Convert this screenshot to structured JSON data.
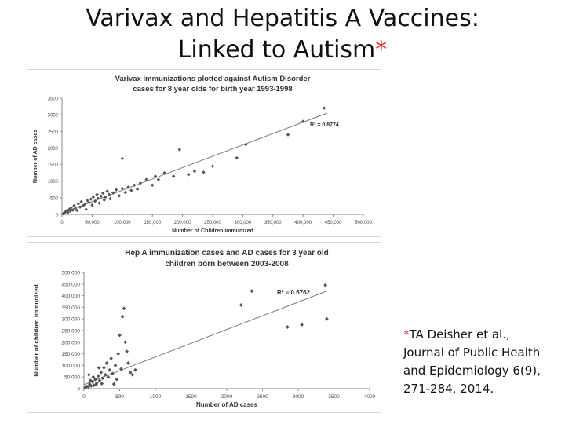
{
  "slide": {
    "title_line1": "Varivax and Hepatitis A Vaccines:",
    "title_line2": "Linked to Autism",
    "title_star": "*",
    "citation_star": "*",
    "citation_lines": [
      "TA Deisher et al.,",
      "Journal of Public Health",
      "and Epidemiology  6(9),",
      "271-284, 2014."
    ],
    "colors": {
      "accent": "#e0302a",
      "marker": "#555555",
      "trendline": "#777777",
      "text": "#111111"
    }
  },
  "chart_data": [
    {
      "type": "scatter",
      "title_lines": [
        "Varivax immunizations plotted against Autism Disorder",
        "cases for 8 year olds for birth year 1993-1998"
      ],
      "xlabel": "Number of Children immunized",
      "ylabel": "Number of AD cases",
      "xlim": [
        0,
        500000
      ],
      "ylim": [
        0,
        3500
      ],
      "x_ticks": [
        0,
        50000,
        100000,
        150000,
        200000,
        250000,
        300000,
        350000,
        400000,
        450000,
        500000
      ],
      "x_tick_labels": [
        "0",
        "50,000",
        "100,000",
        "150,000",
        "200,000",
        "250,000",
        "300,000",
        "350,000",
        "400,000",
        "450,000",
        "500,000"
      ],
      "y_ticks": [
        0,
        500,
        1000,
        1500,
        2000,
        2500,
        3000,
        3500
      ],
      "y_tick_labels": [
        "0",
        "500",
        "1000",
        "1500",
        "2000",
        "2500",
        "3000",
        "3500"
      ],
      "r2_label": "R² = 0.8774",
      "grid": false,
      "trendline": {
        "x": [
          0,
          440000
        ],
        "y": [
          40,
          3050
        ]
      },
      "points": [
        [
          2000,
          20
        ],
        [
          4000,
          40
        ],
        [
          6000,
          80
        ],
        [
          8000,
          110
        ],
        [
          10000,
          60
        ],
        [
          12000,
          150
        ],
        [
          14000,
          100
        ],
        [
          15000,
          200
        ],
        [
          18000,
          130
        ],
        [
          20000,
          260
        ],
        [
          22000,
          180
        ],
        [
          25000,
          120
        ],
        [
          27000,
          320
        ],
        [
          30000,
          220
        ],
        [
          32000,
          380
        ],
        [
          35000,
          260
        ],
        [
          38000,
          310
        ],
        [
          40000,
          150
        ],
        [
          42000,
          420
        ],
        [
          45000,
          360
        ],
        [
          48000,
          460
        ],
        [
          50000,
          280
        ],
        [
          52000,
          520
        ],
        [
          55000,
          400
        ],
        [
          58000,
          600
        ],
        [
          60000,
          480
        ],
        [
          62000,
          340
        ],
        [
          65000,
          550
        ],
        [
          68000,
          640
        ],
        [
          70000,
          430
        ],
        [
          72000,
          520
        ],
        [
          75000,
          700
        ],
        [
          78000,
          600
        ],
        [
          80000,
          470
        ],
        [
          85000,
          650
        ],
        [
          90000,
          740
        ],
        [
          95000,
          560
        ],
        [
          100000,
          780
        ],
        [
          105000,
          660
        ],
        [
          110000,
          820
        ],
        [
          115000,
          720
        ],
        [
          120000,
          880
        ],
        [
          125000,
          760
        ],
        [
          130000,
          940
        ],
        [
          140000,
          1050
        ],
        [
          150000,
          880
        ],
        [
          155000,
          1150
        ],
        [
          160000,
          1050
        ],
        [
          170000,
          1250
        ],
        [
          185000,
          1150
        ],
        [
          195000,
          1950
        ],
        [
          210000,
          1200
        ],
        [
          220000,
          1300
        ],
        [
          235000,
          1270
        ],
        [
          250000,
          1450
        ],
        [
          290000,
          1700
        ],
        [
          305000,
          2100
        ],
        [
          375000,
          2400
        ],
        [
          400000,
          2800
        ],
        [
          435000,
          3200
        ],
        [
          100000,
          1680
        ]
      ]
    },
    {
      "type": "scatter",
      "title_lines": [
        "Hep A immunization cases and AD cases for 3 year old",
        "children born between 2003-2008"
      ],
      "xlabel": "Number of AD cases",
      "ylabel": "Number of children immunized",
      "xlim": [
        0,
        4000
      ],
      "ylim": [
        0,
        500000
      ],
      "x_ticks": [
        0,
        500,
        1000,
        1500,
        2000,
        2500,
        3000,
        3500,
        4000
      ],
      "x_tick_labels": [
        "0",
        "500",
        "1000",
        "1500",
        "2000",
        "2500",
        "3000",
        "3500",
        "4000"
      ],
      "y_ticks": [
        0,
        50000,
        100000,
        150000,
        200000,
        250000,
        300000,
        350000,
        400000,
        450000,
        500000
      ],
      "y_tick_labels": [
        "0",
        "50,000",
        "100,000",
        "150,000",
        "200,000",
        "250,000",
        "300,000",
        "350,000",
        "400,000",
        "450,000",
        "500,000"
      ],
      "r2_label": "R² = 0.6762",
      "grid": false,
      "trendline": {
        "x": [
          0,
          3400
        ],
        "y": [
          18000,
          420000
        ]
      },
      "points": [
        [
          20,
          5000
        ],
        [
          40,
          10000
        ],
        [
          60,
          8000
        ],
        [
          80,
          20000
        ],
        [
          100,
          12000
        ],
        [
          120,
          30000
        ],
        [
          140,
          15000
        ],
        [
          160,
          40000
        ],
        [
          180,
          25000
        ],
        [
          200,
          55000
        ],
        [
          220,
          35000
        ],
        [
          240,
          70000
        ],
        [
          260,
          45000
        ],
        [
          280,
          90000
        ],
        [
          300,
          60000
        ],
        [
          320,
          110000
        ],
        [
          340,
          50000
        ],
        [
          360,
          80000
        ],
        [
          380,
          130000
        ],
        [
          400,
          65000
        ],
        [
          420,
          20000
        ],
        [
          440,
          100000
        ],
        [
          460,
          40000
        ],
        [
          480,
          150000
        ],
        [
          500,
          230000
        ],
        [
          520,
          85000
        ],
        [
          540,
          310000
        ],
        [
          560,
          345000
        ],
        [
          580,
          200000
        ],
        [
          600,
          160000
        ],
        [
          620,
          110000
        ],
        [
          650,
          70000
        ],
        [
          680,
          60000
        ],
        [
          720,
          80000
        ],
        [
          70,
          60000
        ],
        [
          90,
          35000
        ],
        [
          130,
          50000
        ],
        [
          170,
          18000
        ],
        [
          210,
          90000
        ],
        [
          250,
          22000
        ],
        [
          2200,
          360000
        ],
        [
          2350,
          420000
        ],
        [
          2850,
          265000
        ],
        [
          3050,
          275000
        ],
        [
          3400,
          300000
        ],
        [
          3380,
          445000
        ]
      ]
    }
  ]
}
